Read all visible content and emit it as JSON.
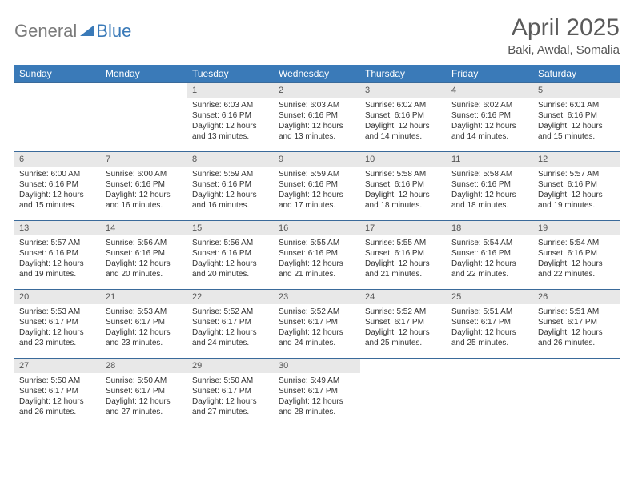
{
  "brand": {
    "part1": "General",
    "part2": "Blue"
  },
  "title": "April 2025",
  "location": "Baki, Awdal, Somalia",
  "colors": {
    "header_bg": "#3a7ab8",
    "daynum_bg": "#e8e8e8",
    "row_border": "#3a6a9a",
    "text": "#333333",
    "logo_gray": "#7a7a7a",
    "logo_blue": "#3a7ab8"
  },
  "day_names": [
    "Sunday",
    "Monday",
    "Tuesday",
    "Wednesday",
    "Thursday",
    "Friday",
    "Saturday"
  ],
  "weeks": [
    [
      null,
      null,
      {
        "n": "1",
        "sr": "6:03 AM",
        "ss": "6:16 PM",
        "dl": "12 hours and 13 minutes."
      },
      {
        "n": "2",
        "sr": "6:03 AM",
        "ss": "6:16 PM",
        "dl": "12 hours and 13 minutes."
      },
      {
        "n": "3",
        "sr": "6:02 AM",
        "ss": "6:16 PM",
        "dl": "12 hours and 14 minutes."
      },
      {
        "n": "4",
        "sr": "6:02 AM",
        "ss": "6:16 PM",
        "dl": "12 hours and 14 minutes."
      },
      {
        "n": "5",
        "sr": "6:01 AM",
        "ss": "6:16 PM",
        "dl": "12 hours and 15 minutes."
      }
    ],
    [
      {
        "n": "6",
        "sr": "6:00 AM",
        "ss": "6:16 PM",
        "dl": "12 hours and 15 minutes."
      },
      {
        "n": "7",
        "sr": "6:00 AM",
        "ss": "6:16 PM",
        "dl": "12 hours and 16 minutes."
      },
      {
        "n": "8",
        "sr": "5:59 AM",
        "ss": "6:16 PM",
        "dl": "12 hours and 16 minutes."
      },
      {
        "n": "9",
        "sr": "5:59 AM",
        "ss": "6:16 PM",
        "dl": "12 hours and 17 minutes."
      },
      {
        "n": "10",
        "sr": "5:58 AM",
        "ss": "6:16 PM",
        "dl": "12 hours and 18 minutes."
      },
      {
        "n": "11",
        "sr": "5:58 AM",
        "ss": "6:16 PM",
        "dl": "12 hours and 18 minutes."
      },
      {
        "n": "12",
        "sr": "5:57 AM",
        "ss": "6:16 PM",
        "dl": "12 hours and 19 minutes."
      }
    ],
    [
      {
        "n": "13",
        "sr": "5:57 AM",
        "ss": "6:16 PM",
        "dl": "12 hours and 19 minutes."
      },
      {
        "n": "14",
        "sr": "5:56 AM",
        "ss": "6:16 PM",
        "dl": "12 hours and 20 minutes."
      },
      {
        "n": "15",
        "sr": "5:56 AM",
        "ss": "6:16 PM",
        "dl": "12 hours and 20 minutes."
      },
      {
        "n": "16",
        "sr": "5:55 AM",
        "ss": "6:16 PM",
        "dl": "12 hours and 21 minutes."
      },
      {
        "n": "17",
        "sr": "5:55 AM",
        "ss": "6:16 PM",
        "dl": "12 hours and 21 minutes."
      },
      {
        "n": "18",
        "sr": "5:54 AM",
        "ss": "6:16 PM",
        "dl": "12 hours and 22 minutes."
      },
      {
        "n": "19",
        "sr": "5:54 AM",
        "ss": "6:16 PM",
        "dl": "12 hours and 22 minutes."
      }
    ],
    [
      {
        "n": "20",
        "sr": "5:53 AM",
        "ss": "6:17 PM",
        "dl": "12 hours and 23 minutes."
      },
      {
        "n": "21",
        "sr": "5:53 AM",
        "ss": "6:17 PM",
        "dl": "12 hours and 23 minutes."
      },
      {
        "n": "22",
        "sr": "5:52 AM",
        "ss": "6:17 PM",
        "dl": "12 hours and 24 minutes."
      },
      {
        "n": "23",
        "sr": "5:52 AM",
        "ss": "6:17 PM",
        "dl": "12 hours and 24 minutes."
      },
      {
        "n": "24",
        "sr": "5:52 AM",
        "ss": "6:17 PM",
        "dl": "12 hours and 25 minutes."
      },
      {
        "n": "25",
        "sr": "5:51 AM",
        "ss": "6:17 PM",
        "dl": "12 hours and 25 minutes."
      },
      {
        "n": "26",
        "sr": "5:51 AM",
        "ss": "6:17 PM",
        "dl": "12 hours and 26 minutes."
      }
    ],
    [
      {
        "n": "27",
        "sr": "5:50 AM",
        "ss": "6:17 PM",
        "dl": "12 hours and 26 minutes."
      },
      {
        "n": "28",
        "sr": "5:50 AM",
        "ss": "6:17 PM",
        "dl": "12 hours and 27 minutes."
      },
      {
        "n": "29",
        "sr": "5:50 AM",
        "ss": "6:17 PM",
        "dl": "12 hours and 27 minutes."
      },
      {
        "n": "30",
        "sr": "5:49 AM",
        "ss": "6:17 PM",
        "dl": "12 hours and 28 minutes."
      },
      null,
      null,
      null
    ]
  ],
  "labels": {
    "sunrise": "Sunrise:",
    "sunset": "Sunset:",
    "daylight": "Daylight:"
  }
}
